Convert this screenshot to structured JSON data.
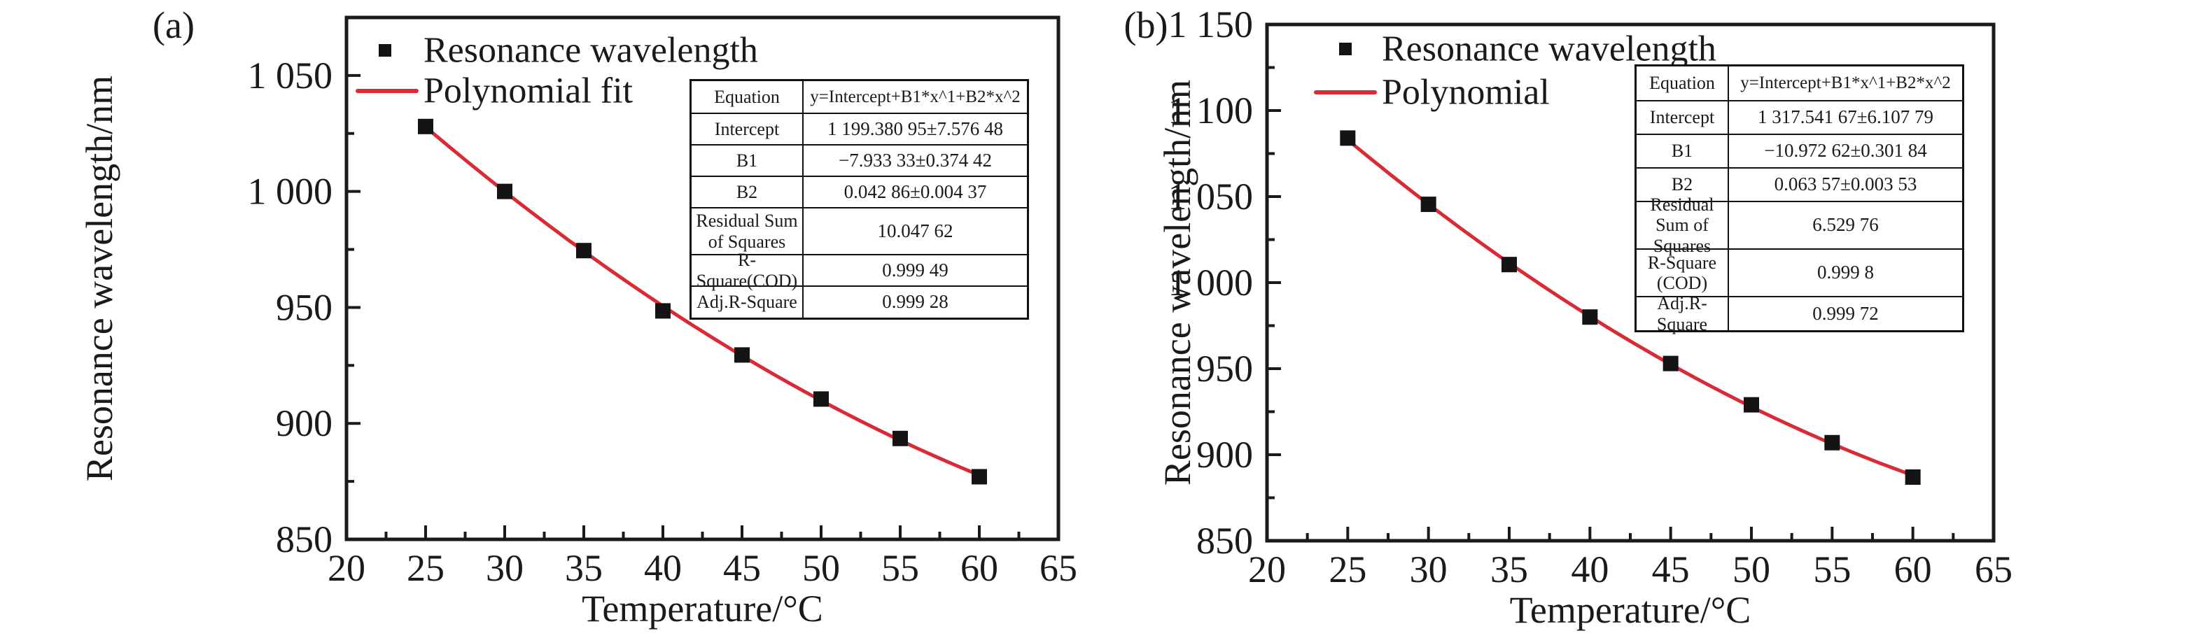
{
  "figure": {
    "background": "#ffffff",
    "text_color": "#1a1a1a",
    "accent_red": "#d92b35",
    "marker_black": "#141414"
  },
  "panels": [
    {
      "corner_label": "(a)",
      "x_label": "Temperature/°C",
      "y_label": "Resonance wavelength/nm",
      "legend": [
        {
          "label": "Resonance wavelength",
          "marker": "square",
          "color": "#141414"
        },
        {
          "label": "Polynomial fit",
          "marker": "line",
          "color": "#d92b35"
        }
      ],
      "table": {
        "rows": [
          {
            "label": "Equation",
            "value": "y=Intercept+B1*x^1+B2*x^2"
          },
          {
            "label": "Intercept",
            "value": "1 199.380 95±7.576 48"
          },
          {
            "label": "B1",
            "value": "−7.933 33±0.374 42"
          },
          {
            "label": "B2",
            "value": "0.042 86±0.004 37"
          },
          {
            "label": "Residual Sum of Squares",
            "value": "10.047 62"
          },
          {
            "label": "R-Square(COD)",
            "value": "0.999 49"
          },
          {
            "label": "Adj.R-Square",
            "value": "0.999 28"
          }
        ]
      }
    },
    {
      "corner_label": "(b)",
      "x_label": "Temperature/°C",
      "y_label": "Resonance wavelength/nm",
      "legend": [
        {
          "label": "Resonance wavelength",
          "marker": "square",
          "color": "#141414"
        },
        {
          "label": "Polynomial",
          "marker": "line",
          "color": "#d92b35"
        }
      ],
      "table": {
        "rows": [
          {
            "label": "Equation",
            "value": "y=Intercept+B1*x^1+B2*x^2"
          },
          {
            "label": "Intercept",
            "value": "1 317.541 67±6.107 79"
          },
          {
            "label": "B1",
            "value": "−10.972 62±0.301 84"
          },
          {
            "label": "B2",
            "value": "0.063 57±0.003 53"
          },
          {
            "label": "Residual Sum of Squares",
            "value": "6.529 76"
          },
          {
            "label": "R-Square (COD)",
            "value": "0.999 8"
          },
          {
            "label": "Adj.R-Square",
            "value": "0.999 72"
          }
        ]
      }
    }
  ],
  "chart_data": [
    {
      "type": "scatter",
      "panel": "(a)",
      "title": "",
      "xlabel": "Temperature/°C",
      "ylabel": "Resonance wavelength/nm",
      "xlim": [
        20,
        65
      ],
      "ylim": [
        850,
        1075
      ],
      "x_ticks": [
        20,
        25,
        30,
        35,
        40,
        45,
        50,
        55,
        60,
        65
      ],
      "y_ticks": [
        850,
        900,
        950,
        1000,
        1050
      ],
      "y_tick_labels": [
        "850",
        "900",
        "950",
        "1 000",
        "1 050"
      ],
      "x_minor_step": 2.5,
      "y_minor_step": 25,
      "grid": false,
      "legend_position": "top-left",
      "x": [
        25,
        30,
        35,
        40,
        45,
        50,
        55,
        60
      ],
      "series": [
        {
          "name": "Resonance wavelength",
          "type": "scatter",
          "marker": "square",
          "color": "#141414",
          "values": [
            1028,
            1000,
            974.5,
            948.5,
            929.5,
            910.5,
            893.5,
            877
          ]
        },
        {
          "name": "Polynomial fit",
          "type": "line",
          "color": "#d92b35",
          "fit_coefficients": {
            "intercept": 1199.38095,
            "b1": -7.93333,
            "b2": 0.04286
          },
          "x_range": [
            25,
            60
          ]
        }
      ]
    },
    {
      "type": "scatter",
      "panel": "(b)",
      "title": "",
      "xlabel": "Temperature/°C",
      "ylabel": "Resonance wavelength/nm",
      "xlim": [
        20,
        65
      ],
      "ylim": [
        850,
        1150
      ],
      "x_ticks": [
        20,
        25,
        30,
        35,
        40,
        45,
        50,
        55,
        60,
        65
      ],
      "y_ticks": [
        850,
        900,
        950,
        1000,
        1050,
        1100,
        1150
      ],
      "y_tick_labels": [
        "850",
        "900",
        "950",
        "1 000",
        "1 050",
        "1 100",
        "1 150"
      ],
      "x_minor_step": 2.5,
      "y_minor_step": 25,
      "grid": false,
      "legend_position": "top-left",
      "x": [
        25,
        30,
        35,
        40,
        45,
        50,
        55,
        60
      ],
      "series": [
        {
          "name": "Resonance wavelength",
          "type": "scatter",
          "marker": "square",
          "color": "#141414",
          "values": [
            1084,
            1045.5,
            1010.5,
            980,
            953,
            929,
            907,
            887
          ]
        },
        {
          "name": "Polynomial",
          "type": "line",
          "color": "#d92b35",
          "fit_coefficients": {
            "intercept": 1317.54167,
            "b1": -10.97262,
            "b2": 0.06357
          },
          "x_range": [
            25,
            60
          ]
        }
      ]
    }
  ]
}
